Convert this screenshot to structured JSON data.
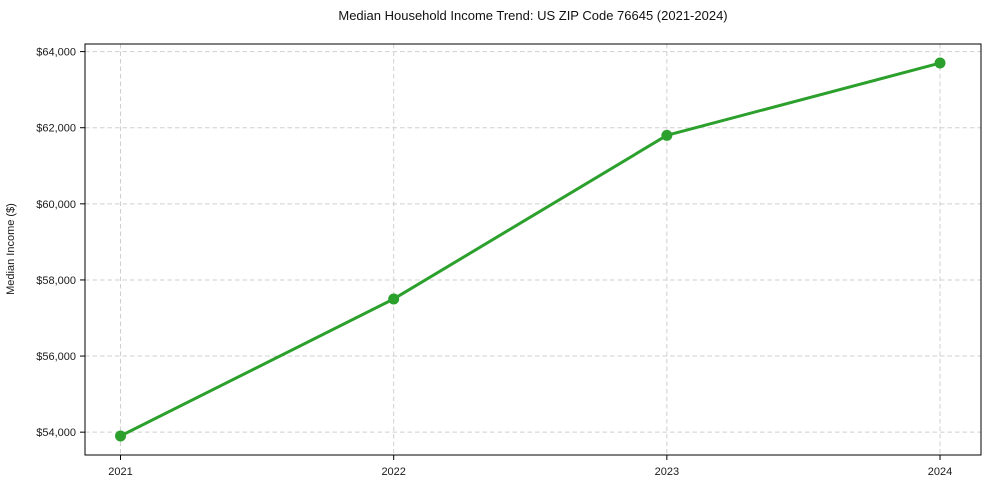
{
  "chart_data": {
    "type": "line",
    "title": "Median Household Income Trend: US ZIP Code 76645 (2021-2024)",
    "xlabel": "",
    "ylabel": "Median Income ($)",
    "x": [
      2021,
      2022,
      2023,
      2024
    ],
    "xtick_labels": [
      "2021",
      "2022",
      "2023",
      "2024"
    ],
    "values": [
      53900,
      57500,
      61800,
      63700
    ],
    "ytick_values": [
      54000,
      56000,
      58000,
      60000,
      62000,
      64000
    ],
    "ytick_labels": [
      "$54,000",
      "$56,000",
      "$58,000",
      "$60,000",
      "$62,000",
      "$64,000"
    ],
    "xlim": [
      2020.87,
      2024.15
    ],
    "ylim": [
      53400,
      64200
    ],
    "grid": true,
    "grid_style": "dashed",
    "legend": false,
    "marker": "circle",
    "colors": {
      "line": "#2ca02c",
      "marker": "#2ca02c",
      "grid": "#cfcfcf",
      "axis": "#000000",
      "text": "#1a1a1a",
      "background": "#ffffff"
    }
  }
}
